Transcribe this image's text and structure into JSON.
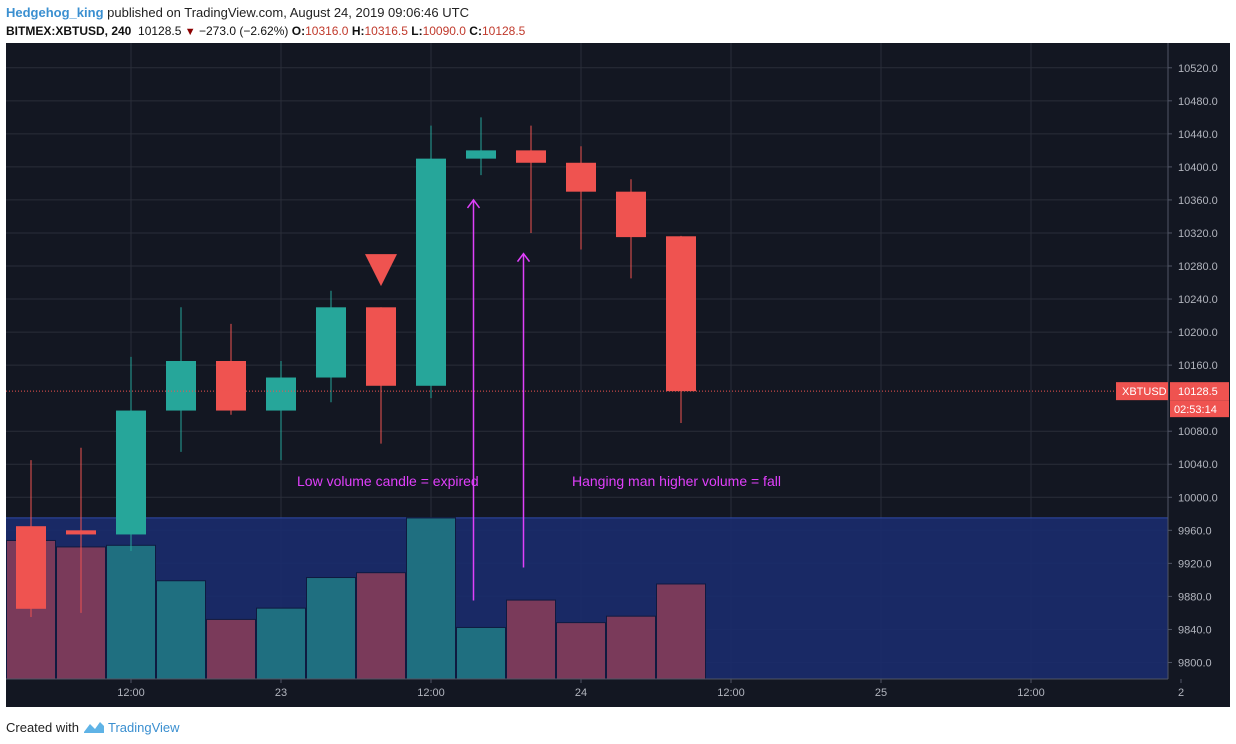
{
  "header": {
    "user": "Hedgehog_king",
    "published_text": "published on TradingView.com, August 24, 2019 09:06:46 UTC",
    "symbol": "BITMEX:XBTUSD, 240",
    "last": "10128.5",
    "change": "−273.0 (−2.62%)",
    "o_label": "O:",
    "o_value": "10316.0",
    "h_label": "H:",
    "h_value": "10316.5",
    "l_label": "L:",
    "l_value": "10090.0",
    "c_label": "C:",
    "c_value": "10128.5"
  },
  "footer": {
    "created_with": "Created with",
    "brand": "TradingView"
  },
  "colors": {
    "background": "#131722",
    "grid": "#2a2e39",
    "up": "#26a69a",
    "down": "#ef5350",
    "volume_zone": "#1a2b6b",
    "annotation": "#e040fb",
    "axis_text": "#b2b5be"
  },
  "chart_data": {
    "type": "candlestick",
    "symbol": "XBTUSD",
    "interval": "240",
    "ylim": [
      9780,
      10550
    ],
    "y_ticks": [
      9800,
      9840,
      9880,
      9920,
      9960,
      10000,
      10040,
      10080,
      10160,
      10200,
      10240,
      10280,
      10320,
      10360,
      10400,
      10440,
      10480,
      10520
    ],
    "y_tick_labels": [
      "9800.0",
      "9840.0",
      "9880.0",
      "9920.0",
      "9960.0",
      "10000.0",
      "10040.0",
      "10080.0",
      "10160.0",
      "10200.0",
      "10240.0",
      "10280.0",
      "10320.0",
      "10360.0",
      "10400.0",
      "10440.0",
      "10480.0",
      "10520.0"
    ],
    "x_tick_labels": [
      "12:00",
      "23",
      "12:00",
      "24",
      "12:00",
      "25",
      "12:00",
      "2"
    ],
    "x_tick_slots": [
      2.5,
      5.5,
      8.5,
      11.5,
      14.5,
      17.5,
      20.5,
      23.5
    ],
    "candles": [
      {
        "o": 9965,
        "h": 10045,
        "l": 9855,
        "c": 9865
      },
      {
        "o": 9960,
        "h": 10060,
        "l": 9860,
        "c": 9955
      },
      {
        "o": 9955,
        "h": 10170,
        "l": 9935,
        "c": 10105
      },
      {
        "o": 10105,
        "h": 10230,
        "l": 10055,
        "c": 10165
      },
      {
        "o": 10165,
        "h": 10210,
        "l": 10100,
        "c": 10105
      },
      {
        "o": 10105,
        "h": 10165,
        "l": 10045,
        "c": 10145
      },
      {
        "o": 10145,
        "h": 10250,
        "l": 10115,
        "c": 10230
      },
      {
        "o": 10230,
        "h": 10230,
        "l": 10065,
        "c": 10135
      },
      {
        "o": 10135,
        "h": 10450,
        "l": 10120,
        "c": 10410
      },
      {
        "o": 10410,
        "h": 10460,
        "l": 10390,
        "c": 10420
      },
      {
        "o": 10420,
        "h": 10450,
        "l": 10320,
        "c": 10405
      },
      {
        "o": 10405,
        "h": 10425,
        "l": 10300,
        "c": 10370
      },
      {
        "o": 10370,
        "h": 10385,
        "l": 10265,
        "c": 10315
      },
      {
        "o": 10316,
        "h": 10316.5,
        "l": 10090,
        "c": 10128.5
      }
    ],
    "volumes": [
      0.86,
      0.82,
      0.83,
      0.61,
      0.37,
      0.44,
      0.63,
      0.66,
      1.0,
      0.32,
      0.49,
      0.35,
      0.39,
      0.59
    ],
    "last_price": 10128.5,
    "last_label": "XBTUSD",
    "last_price_label": "10128.5",
    "countdown": "02:53:14",
    "markers": [
      {
        "type": "down-triangle",
        "candle": 7,
        "price": 10275
      }
    ],
    "annotations": [
      {
        "text": "Low volume candle = expired",
        "price": 10020,
        "slot": 8.5
      },
      {
        "text": "Hanging man higher volume = fall",
        "price": 10020,
        "slot": 14
      }
    ],
    "arrows": [
      {
        "slot": 9.35,
        "from": 9875,
        "to": 10360
      },
      {
        "slot": 10.35,
        "from": 9915,
        "to": 10295
      }
    ]
  }
}
